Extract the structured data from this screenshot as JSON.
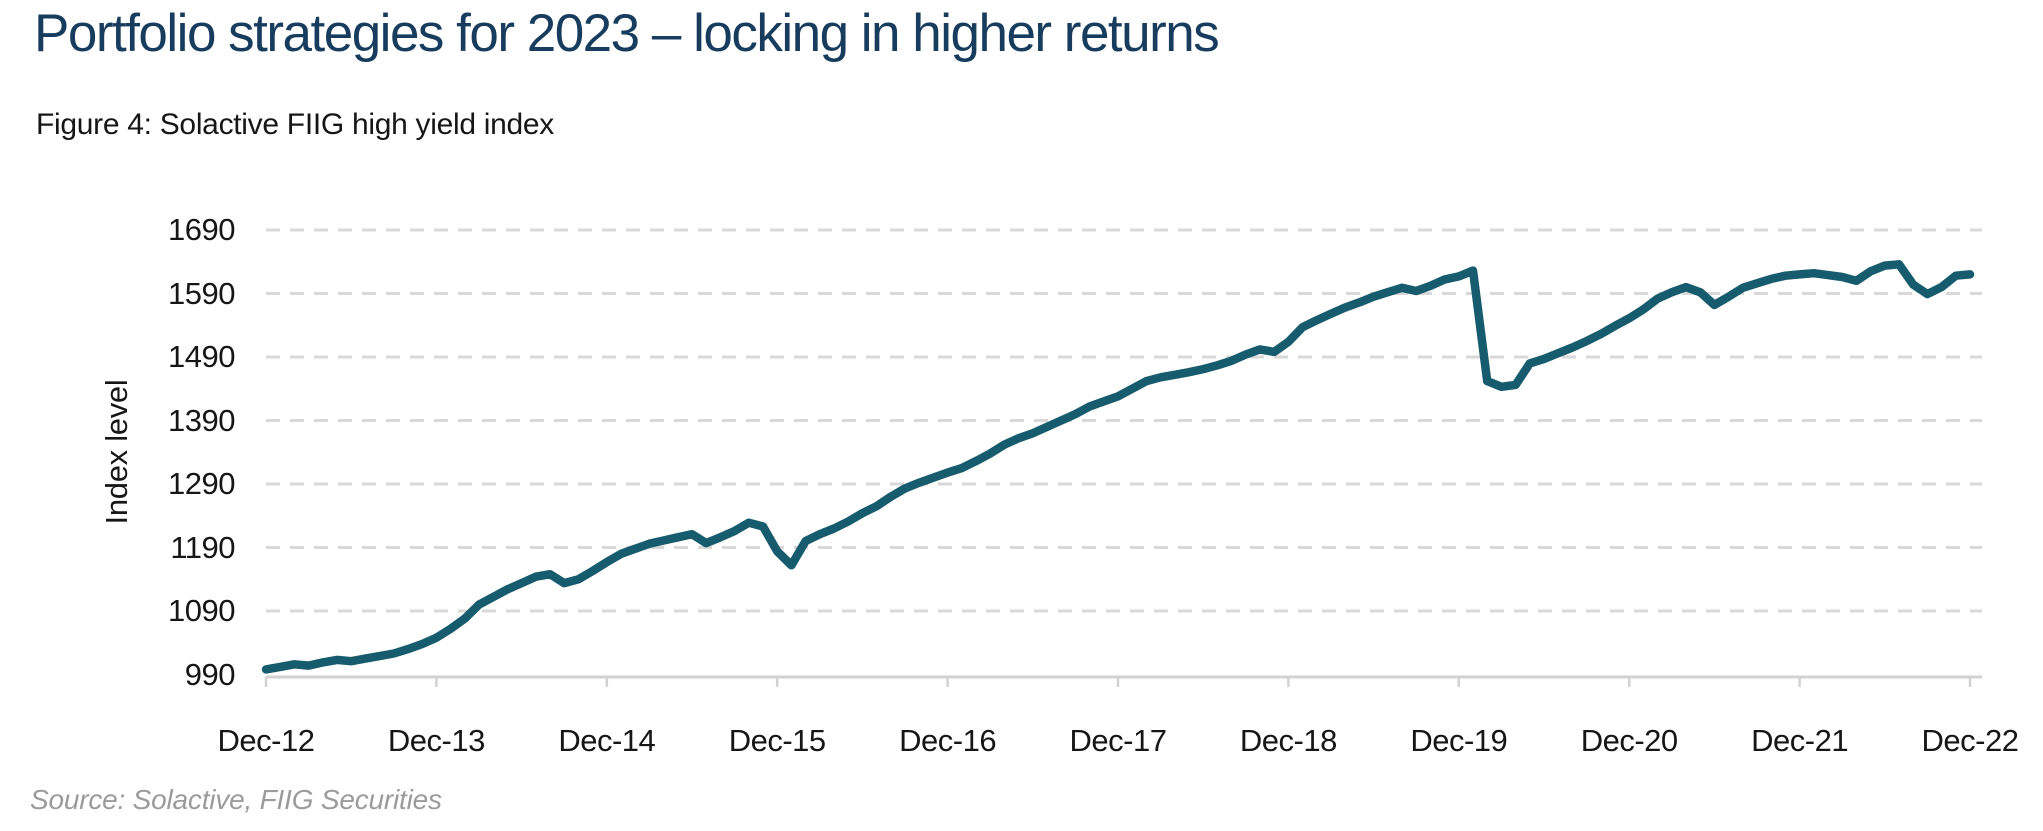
{
  "page": {
    "title": "Portfolio strategies for 2023 – locking in higher returns",
    "source": "Source: Solactive, FIIG Securities"
  },
  "colors": {
    "title_navy": "#183c5e",
    "line_teal": "#175c6e",
    "gridline": "#d8d8d8",
    "axis": "#d2d2d2",
    "text": "#161616",
    "source_gray": "#9b9b9b"
  },
  "chart_data": {
    "type": "line",
    "title": "Figure 4: Solactive FIIG high yield index",
    "xlabel": "",
    "ylabel": "Index level",
    "ylim": [
      990,
      1690
    ],
    "yticks": [
      990,
      1090,
      1190,
      1290,
      1390,
      1490,
      1590,
      1690
    ],
    "xticks": [
      "Dec-12",
      "Dec-13",
      "Dec-14",
      "Dec-15",
      "Dec-16",
      "Dec-17",
      "Dec-18",
      "Dec-19",
      "Dec-20",
      "Dec-21",
      "Dec-22"
    ],
    "x_interval": "monthly (one value per month, Dec-12 through Dec-22)",
    "grid": "horizontal-dashed",
    "legend": "none",
    "series": [
      {
        "name": "Solactive FIIG high yield index",
        "color": "#175c6e",
        "values": [
          998,
          1002,
          1006,
          1004,
          1009,
          1013,
          1011,
          1015,
          1019,
          1023,
          1030,
          1038,
          1048,
          1062,
          1078,
          1100,
          1112,
          1124,
          1134,
          1144,
          1148,
          1134,
          1140,
          1153,
          1167,
          1180,
          1188,
          1196,
          1201,
          1206,
          1211,
          1197,
          1206,
          1216,
          1229,
          1223,
          1184,
          1162,
          1200,
          1211,
          1220,
          1231,
          1244,
          1255,
          1270,
          1283,
          1292,
          1300,
          1308,
          1315,
          1326,
          1338,
          1352,
          1362,
          1370,
          1380,
          1390,
          1400,
          1412,
          1420,
          1428,
          1440,
          1452,
          1458,
          1462,
          1466,
          1471,
          1477,
          1484,
          1494,
          1502,
          1498,
          1514,
          1537,
          1548,
          1558,
          1568,
          1576,
          1585,
          1592,
          1599,
          1594,
          1602,
          1612,
          1617,
          1626,
          1452,
          1443,
          1446,
          1480,
          1487,
          1496,
          1505,
          1515,
          1526,
          1539,
          1551,
          1565,
          1582,
          1592,
          1600,
          1592,
          1572,
          1585,
          1599,
          1606,
          1613,
          1618,
          1620,
          1622,
          1619,
          1616,
          1610,
          1625,
          1634,
          1636,
          1604,
          1589,
          1600,
          1618,
          1620
        ]
      }
    ]
  }
}
